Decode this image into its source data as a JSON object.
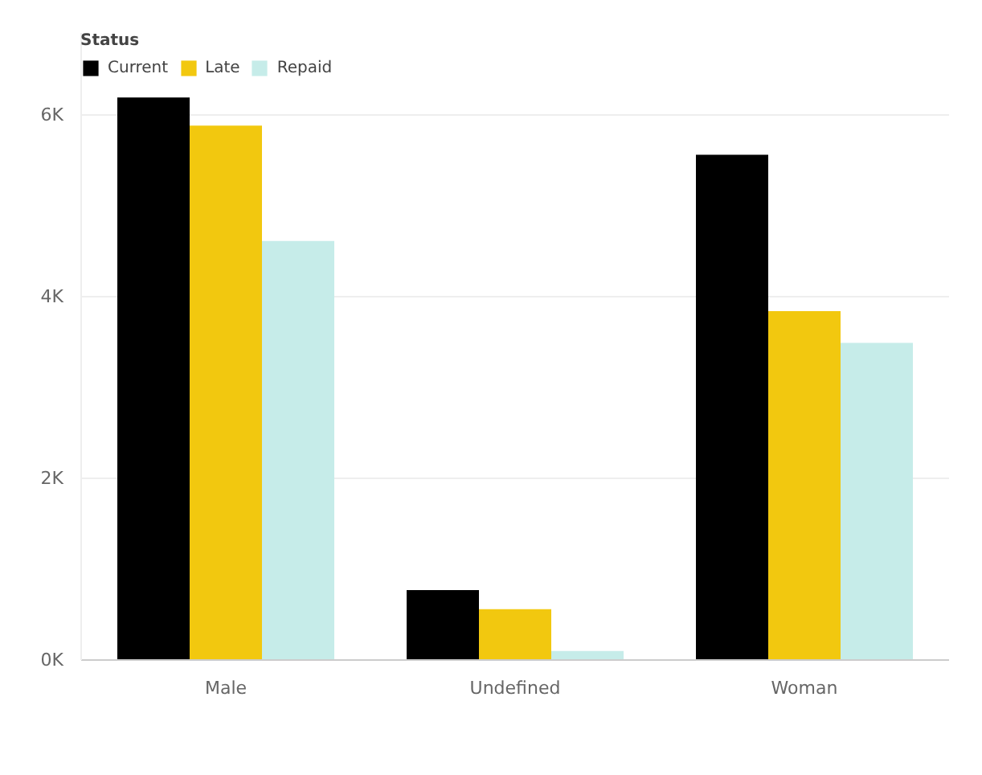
{
  "chart_data": {
    "type": "bar",
    "legend_title": "Status",
    "categories": [
      "Male",
      "Undefined",
      "Woman"
    ],
    "series": [
      {
        "name": "Current",
        "color": "#000000",
        "values": [
          6190,
          770,
          5560
        ]
      },
      {
        "name": "Late",
        "color": "#f2c80f",
        "values": [
          5880,
          560,
          3840
        ]
      },
      {
        "name": "Repaid",
        "color": "#c6ece9",
        "values": [
          4610,
          100,
          3490
        ]
      }
    ],
    "ylim": [
      0,
      6900
    ],
    "yticks": [
      {
        "value": 0,
        "label": "0K"
      },
      {
        "value": 2000,
        "label": "2K"
      },
      {
        "value": 4000,
        "label": "4K"
      },
      {
        "value": 6000,
        "label": "6K"
      }
    ],
    "grid": "y",
    "legend": "top left"
  }
}
